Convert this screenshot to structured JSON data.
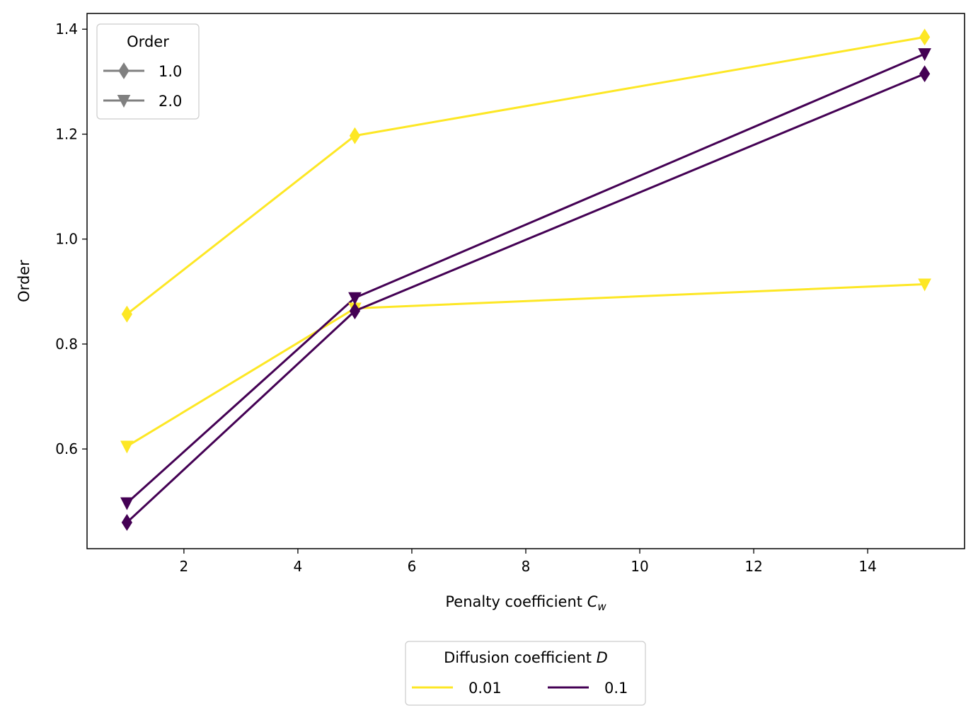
{
  "chart_data": {
    "type": "line",
    "title": "",
    "xlabel": "Penalty coefficient ",
    "xlabel_math": "C",
    "xlabel_sub": "w",
    "ylabel": "Order",
    "xlim": [
      0.3,
      15.7
    ],
    "ylim": [
      0.41,
      1.43
    ],
    "xticks": [
      2,
      4,
      6,
      8,
      10,
      12,
      14
    ],
    "yticks": [
      0.6,
      0.8,
      1.0,
      1.2,
      1.4
    ],
    "xtick_labels": [
      "2",
      "4",
      "6",
      "8",
      "10",
      "12",
      "14"
    ],
    "ytick_labels": [
      "0.6",
      "0.8",
      "1.0",
      "1.2",
      "1.4"
    ],
    "grid": false,
    "colors": {
      "D_0.01": "#fde725",
      "D_0.1": "#440154",
      "marker_legend": "#808080"
    },
    "series": [
      {
        "D": "0.01",
        "order": "1.0",
        "marker": "diamond",
        "color": "#fde725",
        "x": [
          1,
          5,
          15
        ],
        "y": [
          0.857,
          1.197,
          1.385
        ]
      },
      {
        "D": "0.01",
        "order": "2.0",
        "marker": "triangle-down",
        "color": "#fde725",
        "x": [
          1,
          5,
          15
        ],
        "y": [
          0.605,
          0.868,
          0.914
        ]
      },
      {
        "D": "0.1",
        "order": "1.0",
        "marker": "diamond",
        "color": "#440154",
        "x": [
          1,
          5,
          15
        ],
        "y": [
          0.46,
          0.863,
          1.315
        ]
      },
      {
        "D": "0.1",
        "order": "2.0",
        "marker": "triangle-down",
        "color": "#440154",
        "x": [
          1,
          5,
          15
        ],
        "y": [
          0.497,
          0.888,
          1.353
        ]
      }
    ],
    "legend_marker": {
      "title": "Order",
      "placement": "top-left",
      "entries": [
        {
          "label": "1.0",
          "marker": "diamond"
        },
        {
          "label": "2.0",
          "marker": "triangle-down"
        }
      ]
    },
    "legend_color": {
      "title": "Diffusion coefficient ",
      "title_math": "D",
      "placement": "bottom-center",
      "entries": [
        {
          "label": "0.01",
          "color": "#fde725"
        },
        {
          "label": "0.1",
          "color": "#440154"
        }
      ]
    }
  }
}
